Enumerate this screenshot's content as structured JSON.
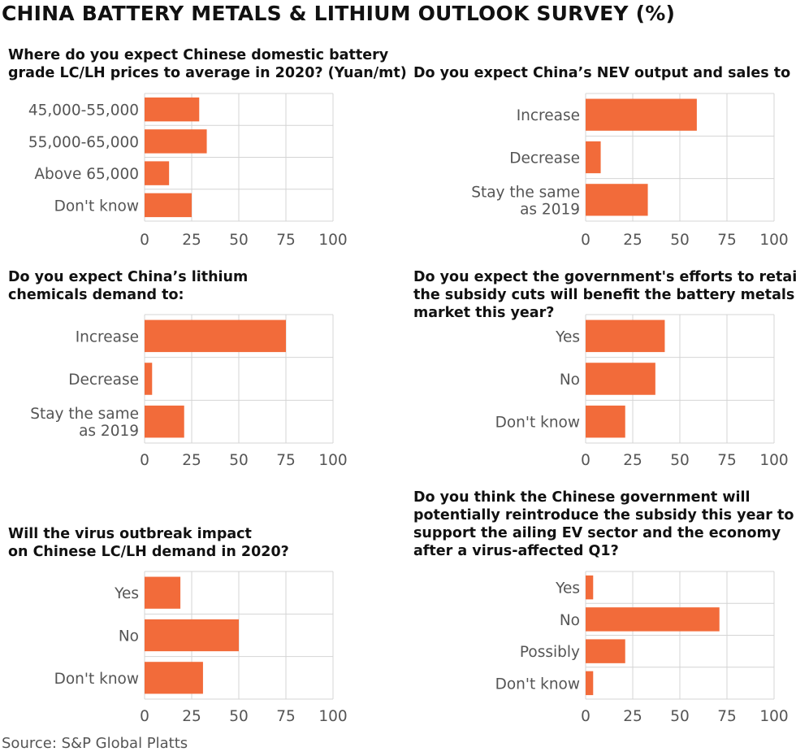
{
  "header": {
    "title": "CHINA BATTERY METALS & LITHIUM OUTLOOK SURVEY (%)"
  },
  "footer": {
    "source": "Source: S&P Global Platts"
  },
  "colors": {
    "bar": "#f26b3a",
    "grid": "#d4d4d4",
    "text": "#555555",
    "title": "#111111"
  },
  "chart_data": [
    {
      "type": "bar",
      "orientation": "horizontal",
      "title_lines": [
        "Where do you expect Chinese domestic battery",
        "grade LC/LH prices to average in 2020? (Yuan/mt)"
      ],
      "categories": [
        [
          "45,000-55,000"
        ],
        [
          "55,000-65,000"
        ],
        [
          "Above 65,000"
        ],
        [
          "Don't know"
        ]
      ],
      "values": [
        29,
        33,
        13,
        25
      ],
      "xlim": [
        0,
        100
      ],
      "xticks": [
        "0",
        "25",
        "50",
        "75",
        "100"
      ],
      "grid": true
    },
    {
      "type": "bar",
      "orientation": "horizontal",
      "title_lines": [
        "Do you expect China’s NEV output and sales to"
      ],
      "categories": [
        [
          "Increase"
        ],
        [
          "Decrease"
        ],
        [
          "Stay the same",
          "as 2019"
        ]
      ],
      "values": [
        59,
        8,
        33
      ],
      "xlim": [
        0,
        100
      ],
      "xticks": [
        "0",
        "25",
        "50",
        "75",
        "100"
      ],
      "grid": true
    },
    {
      "type": "bar",
      "orientation": "horizontal",
      "title_lines": [
        "Do you expect China’s lithium",
        "chemicals demand to:"
      ],
      "categories": [
        [
          "Increase"
        ],
        [
          "Decrease"
        ],
        [
          "Stay the same",
          "as 2019"
        ]
      ],
      "values": [
        75,
        4,
        21
      ],
      "xlim": [
        0,
        100
      ],
      "xticks": [
        "0",
        "25",
        "50",
        "75",
        "100"
      ],
      "grid": true
    },
    {
      "type": "bar",
      "orientation": "horizontal",
      "title_lines": [
        "Do you expect the government's efforts to retain",
        "the subsidy cuts will benefit the battery metals",
        "market this year?"
      ],
      "categories": [
        [
          "Yes"
        ],
        [
          "No"
        ],
        [
          "Don't know"
        ]
      ],
      "values": [
        42,
        37,
        21
      ],
      "xlim": [
        0,
        100
      ],
      "xticks": [
        "0",
        "25",
        "50",
        "75",
        "100"
      ],
      "grid": true
    },
    {
      "type": "bar",
      "orientation": "horizontal",
      "title_lines": [
        "Will the virus outbreak impact",
        "on Chinese LC/LH demand in 2020?"
      ],
      "categories": [
        [
          "Yes"
        ],
        [
          "No"
        ],
        [
          "Don't know"
        ]
      ],
      "values": [
        19,
        50,
        31
      ],
      "xlim": [
        0,
        100
      ],
      "xticks": [
        "0",
        "25",
        "50",
        "75",
        "100"
      ],
      "grid": true
    },
    {
      "type": "bar",
      "orientation": "horizontal",
      "title_lines": [
        "Do you think the Chinese government will",
        "potentially reintroduce the subsidy this year to",
        "support the ailing EV sector and the economy",
        "after a virus-affected Q1?"
      ],
      "categories": [
        [
          "Yes"
        ],
        [
          "No"
        ],
        [
          "Possibly"
        ],
        [
          "Don't know"
        ]
      ],
      "values": [
        4,
        71,
        21,
        4
      ],
      "xlim": [
        0,
        100
      ],
      "xticks": [
        "0",
        "25",
        "50",
        "75",
        "100"
      ],
      "grid": true
    }
  ]
}
